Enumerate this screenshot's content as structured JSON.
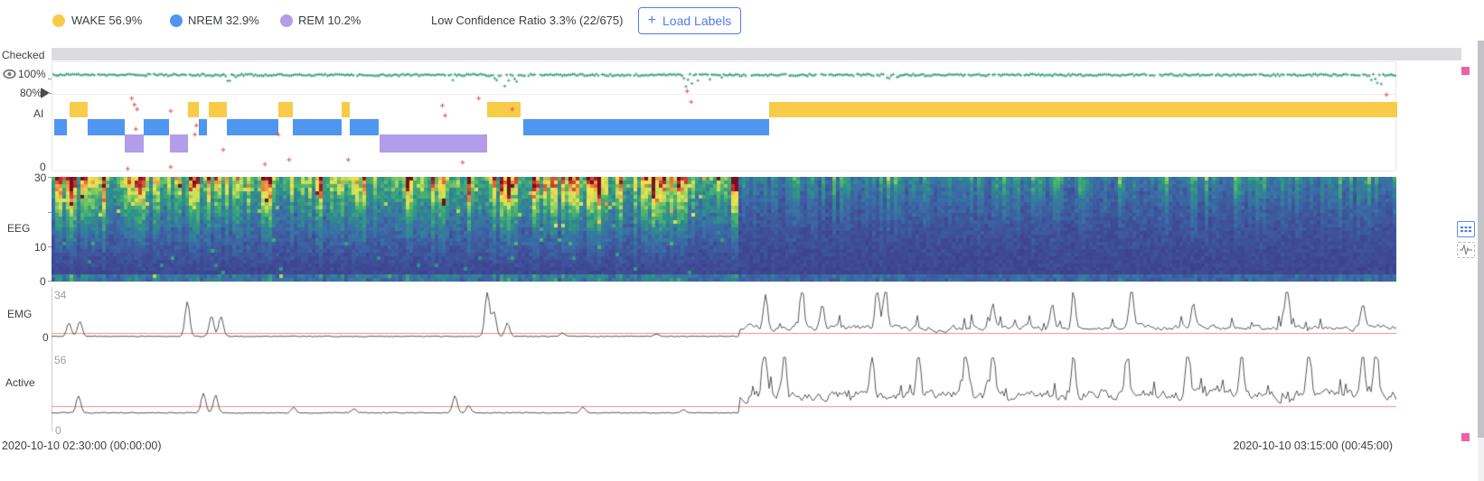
{
  "header": {
    "legend": [
      {
        "name": "wake",
        "label": "WAKE 56.9%"
      },
      {
        "name": "nrem",
        "label": "NREM 32.9%"
      },
      {
        "name": "rem",
        "label": "REM 10.2%"
      }
    ],
    "low_confidence_text": "Low Confidence Ratio 3.3% (22/675)",
    "load_labels": {
      "plus": "+",
      "label": "Load Labels"
    }
  },
  "rows": {
    "checked_label": "Checked",
    "ai_label": "AI",
    "eeg_label": "EEG",
    "emg_label": "EMG",
    "active_label": "Active"
  },
  "axes": {
    "conf_100": "100%",
    "conf_80": "80%",
    "conf_0": "0",
    "eeg_max": "30",
    "eeg_mid": "10",
    "eeg_min": "0",
    "emg_max": "34",
    "emg_zero": "0",
    "active_max": "56",
    "time_zero": "0",
    "time_start": "2020-10-10 02:30:00 (00:00:00)",
    "time_end": "2020-10-10 03:15:00 (00:45:00)"
  },
  "colors": {
    "wake": "#f8cb48",
    "nrem": "#4e96f0",
    "rem": "#b29de9",
    "accent_blue": "#4e7de9",
    "checked_bar": "#dcdcdf",
    "green_dot": "#35a17f",
    "red_cross": "#e14b4b",
    "threshold_red": "#f08c8c",
    "trace_gray": "#555555",
    "handle_pink": "#ec62a5",
    "spectrogram_stops": [
      [
        0.0,
        "#38377f"
      ],
      [
        0.15,
        "#3f4b96"
      ],
      [
        0.3,
        "#3a6fa8"
      ],
      [
        0.45,
        "#2e9487"
      ],
      [
        0.58,
        "#52b96a"
      ],
      [
        0.7,
        "#c8e05a"
      ],
      [
        0.8,
        "#f7e04b"
      ],
      [
        0.88,
        "#e8713a"
      ],
      [
        0.94,
        "#c22c35"
      ],
      [
        1.0,
        "#77101e"
      ]
    ]
  },
  "chart_data": {
    "hypnogram": {
      "type": "heatmap",
      "stages": [
        "WAKE",
        "NREM",
        "REM"
      ],
      "percentages": {
        "WAKE": 56.9,
        "NREM": 32.9,
        "REM": 10.2
      },
      "segments": [
        {
          "stage": "NREM",
          "x0": 0.001,
          "x1": 0.011
        },
        {
          "stage": "WAKE",
          "x0": 0.013,
          "x1": 0.026
        },
        {
          "stage": "NREM",
          "x0": 0.026,
          "x1": 0.054
        },
        {
          "stage": "REM",
          "x0": 0.054,
          "x1": 0.068
        },
        {
          "stage": "NREM",
          "x0": 0.068,
          "x1": 0.087
        },
        {
          "stage": "REM",
          "x0": 0.087,
          "x1": 0.101
        },
        {
          "stage": "WAKE",
          "x0": 0.101,
          "x1": 0.109
        },
        {
          "stage": "NREM",
          "x0": 0.109,
          "x1": 0.115
        },
        {
          "stage": "WAKE",
          "x0": 0.116,
          "x1": 0.13
        },
        {
          "stage": "NREM",
          "x0": 0.13,
          "x1": 0.168
        },
        {
          "stage": "WAKE",
          "x0": 0.168,
          "x1": 0.179
        },
        {
          "stage": "NREM",
          "x0": 0.179,
          "x1": 0.215
        },
        {
          "stage": "WAKE",
          "x0": 0.215,
          "x1": 0.221
        },
        {
          "stage": "NREM",
          "x0": 0.221,
          "x1": 0.243
        },
        {
          "stage": "REM",
          "x0": 0.243,
          "x1": 0.323
        },
        {
          "stage": "WAKE",
          "x0": 0.323,
          "x1": 0.348
        },
        {
          "stage": "NREM",
          "x0": 0.35,
          "x1": 0.533
        },
        {
          "stage": "WAKE",
          "x0": 0.533,
          "x1": 1.0
        }
      ]
    },
    "confidence": {
      "epochs": 675,
      "low_confidence_count": 22,
      "dips": [
        {
          "x": 0.131,
          "d": 14
        },
        {
          "x": 0.295,
          "d": 10
        },
        {
          "x": 0.334,
          "d": 20
        },
        {
          "x": 0.345,
          "d": 12
        },
        {
          "x": 0.475,
          "d": 22
        },
        {
          "x": 0.492,
          "d": 12
        },
        {
          "x": 0.625,
          "d": 8
        },
        {
          "x": 0.985,
          "d": 14
        }
      ],
      "low_points": [
        {
          "x": 0.059,
          "y": 40
        },
        {
          "x": 0.061,
          "y": 47
        },
        {
          "x": 0.063,
          "y": 52
        },
        {
          "x": 0.062,
          "y": 74
        },
        {
          "x": 0.088,
          "y": 54
        },
        {
          "x": 0.107,
          "y": 70
        },
        {
          "x": 0.106,
          "y": 80
        },
        {
          "x": 0.127,
          "y": 97
        },
        {
          "x": 0.056,
          "y": 118
        },
        {
          "x": 0.088,
          "y": 116
        },
        {
          "x": 0.158,
          "y": 113
        },
        {
          "x": 0.168,
          "y": 80
        },
        {
          "x": 0.176,
          "y": 108
        },
        {
          "x": 0.22,
          "y": 108
        },
        {
          "x": 0.29,
          "y": 48
        },
        {
          "x": 0.292,
          "y": 59
        },
        {
          "x": 0.305,
          "y": 111
        },
        {
          "x": 0.317,
          "y": 40
        },
        {
          "x": 0.342,
          "y": 52
        },
        {
          "x": 0.992,
          "y": 36
        },
        {
          "x": 0.472,
          "y": 32
        },
        {
          "x": 0.475,
          "y": 44
        }
      ]
    },
    "eeg_spectrogram": {
      "type": "heatmap",
      "y_range": [
        0,
        30
      ],
      "sleep_wake_boundary": 0.509,
      "cols": 372,
      "rows": 29,
      "seed": 1337
    },
    "emg": {
      "type": "line",
      "y_top_label": 34,
      "threshold_from_bottom": 11,
      "active_start": 0.512,
      "base_right": 0.22,
      "jitter_right": 0.1,
      "spikes_left": [
        {
          "x": 0.013,
          "h": 0.3
        },
        {
          "x": 0.021,
          "h": 0.34
        },
        {
          "x": 0.101,
          "h": 0.78
        },
        {
          "x": 0.119,
          "h": 0.46
        },
        {
          "x": 0.126,
          "h": 0.44
        },
        {
          "x": 0.324,
          "h": 1.0
        },
        {
          "x": 0.329,
          "h": 0.55
        },
        {
          "x": 0.339,
          "h": 0.3
        },
        {
          "x": 0.38,
          "h": 0.08
        },
        {
          "x": 0.45,
          "h": 0.06
        }
      ],
      "spikes_right": [
        {
          "x": 0.531,
          "h": 0.8
        },
        {
          "x": 0.558,
          "h": 1.0
        },
        {
          "x": 0.573,
          "h": 0.5
        },
        {
          "x": 0.614,
          "h": 0.95
        },
        {
          "x": 0.62,
          "h": 1.0
        },
        {
          "x": 0.7,
          "h": 0.5
        },
        {
          "x": 0.744,
          "h": 0.55
        },
        {
          "x": 0.76,
          "h": 0.65
        },
        {
          "x": 0.803,
          "h": 1.0
        },
        {
          "x": 0.849,
          "h": 0.5
        },
        {
          "x": 0.919,
          "h": 1.0
        },
        {
          "x": 0.975,
          "h": 0.55
        }
      ]
    },
    "active": {
      "type": "line",
      "y_top_label": 56,
      "threshold_from_bottom": 15,
      "active_start": 0.512,
      "base_right": 0.34,
      "jitter_right": 0.15,
      "spikes_left": [
        {
          "x": 0.02,
          "h": 0.3
        },
        {
          "x": 0.113,
          "h": 0.34
        },
        {
          "x": 0.122,
          "h": 0.31
        },
        {
          "x": 0.18,
          "h": 0.1
        },
        {
          "x": 0.225,
          "h": 0.08
        },
        {
          "x": 0.3,
          "h": 0.3
        },
        {
          "x": 0.31,
          "h": 0.12
        },
        {
          "x": 0.395,
          "h": 0.1
        },
        {
          "x": 0.47,
          "h": 0.06
        }
      ],
      "spikes_right": [
        {
          "x": 0.53,
          "h": 0.95
        },
        {
          "x": 0.545,
          "h": 0.8
        },
        {
          "x": 0.61,
          "h": 0.72
        },
        {
          "x": 0.645,
          "h": 0.85
        },
        {
          "x": 0.68,
          "h": 0.9
        },
        {
          "x": 0.7,
          "h": 0.78
        },
        {
          "x": 0.76,
          "h": 0.7
        },
        {
          "x": 0.8,
          "h": 0.62
        },
        {
          "x": 0.845,
          "h": 0.88
        },
        {
          "x": 0.885,
          "h": 0.72
        },
        {
          "x": 0.935,
          "h": 0.82
        },
        {
          "x": 0.975,
          "h": 0.95
        },
        {
          "x": 0.985,
          "h": 0.88
        }
      ]
    },
    "time_axis": {
      "start": "2020-10-10 02:30:00 (00:00:00)",
      "end": "2020-10-10 03:15:00 (00:45:00)"
    }
  }
}
